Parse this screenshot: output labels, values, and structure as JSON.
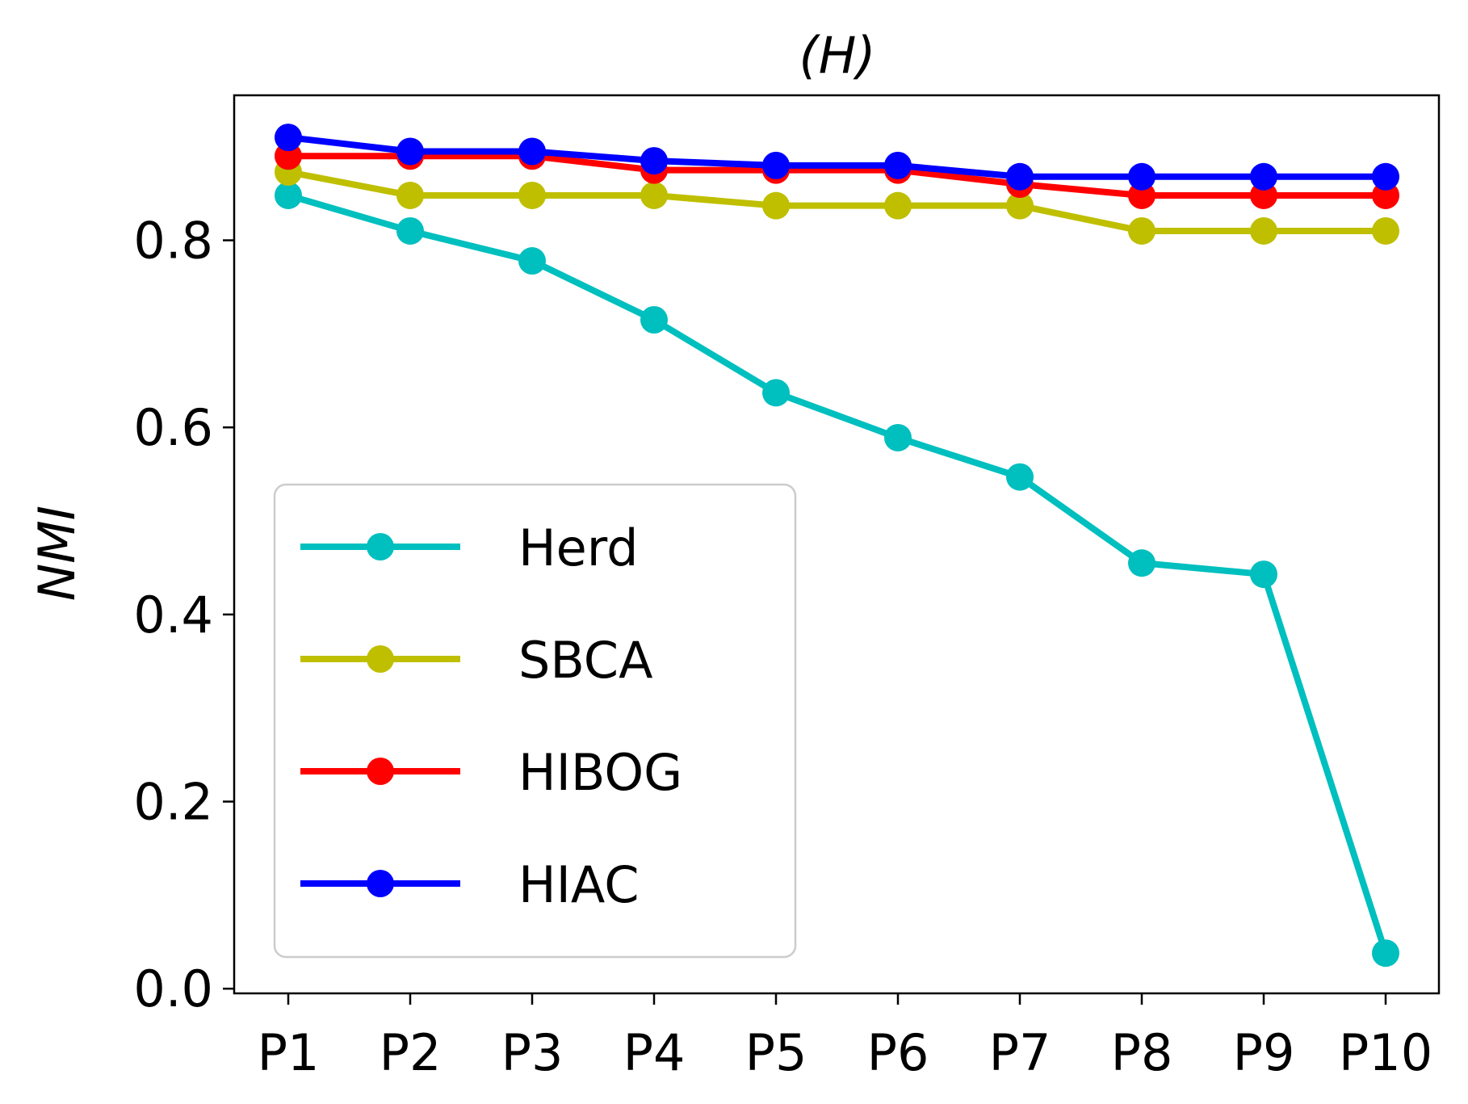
{
  "chart_data": {
    "type": "line",
    "title": "(H)",
    "xlabel": "",
    "ylabel": "NMI",
    "categories": [
      "P1",
      "P2",
      "P3",
      "P4",
      "P5",
      "P6",
      "P7",
      "P8",
      "P9",
      "P10"
    ],
    "ylim": [
      -0.005,
      0.955
    ],
    "yticks": [
      0.0,
      0.2,
      0.4,
      0.6,
      0.8
    ],
    "ytick_labels": [
      "0.0",
      "0.2",
      "0.4",
      "0.6",
      "0.8"
    ],
    "grid": false,
    "legend_position": "lower-left",
    "series": [
      {
        "name": "Herd",
        "color": "#00bfbf",
        "values": [
          0.848,
          0.81,
          0.778,
          0.715,
          0.637,
          0.589,
          0.547,
          0.455,
          0.443,
          0.038
        ]
      },
      {
        "name": "SBCA",
        "color": "#bfbf00",
        "values": [
          0.873,
          0.848,
          0.848,
          0.848,
          0.837,
          0.837,
          0.837,
          0.81,
          0.81,
          0.81
        ]
      },
      {
        "name": "HIBOG",
        "color": "#ff0000",
        "values": [
          0.89,
          0.89,
          0.89,
          0.875,
          0.875,
          0.875,
          0.86,
          0.848,
          0.848,
          0.848
        ]
      },
      {
        "name": "HIAC",
        "color": "#0000ff",
        "values": [
          0.91,
          0.895,
          0.895,
          0.885,
          0.88,
          0.88,
          0.868,
          0.868,
          0.868,
          0.868
        ]
      }
    ]
  }
}
